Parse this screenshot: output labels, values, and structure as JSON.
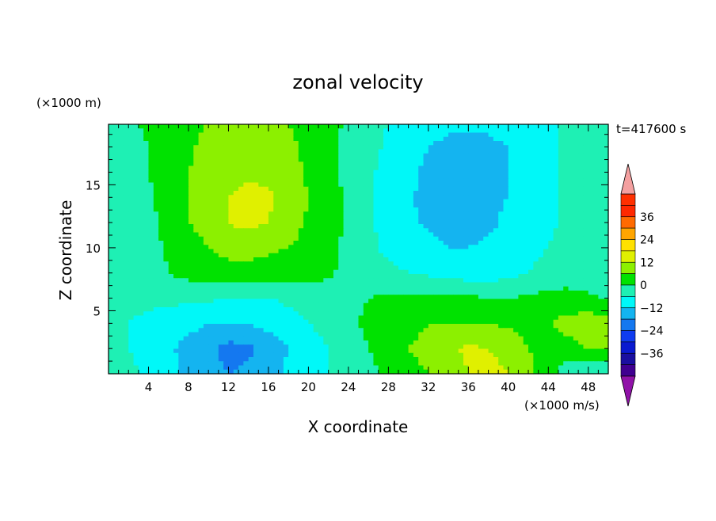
{
  "chart_data": {
    "type": "heatmap",
    "title": "zonal velocity",
    "xlabel": "X coordinate",
    "ylabel": "Z coordinate",
    "x_unit": "(×1000 m/s)",
    "y_unit": "(×1000 m)",
    "time_label": "t=417600 s",
    "xlim": [
      0,
      50
    ],
    "ylim": [
      0,
      19.8
    ],
    "x_ticks": [
      4,
      8,
      12,
      16,
      20,
      24,
      28,
      32,
      36,
      40,
      44,
      48
    ],
    "y_ticks": [
      5,
      10,
      15
    ],
    "grid": false,
    "colorbar": {
      "levels": [
        -42,
        -36,
        -30,
        -24,
        -18,
        -12,
        -6,
        0,
        6,
        12,
        18,
        24,
        30,
        36,
        42
      ],
      "colors": [
        "#400090",
        "#1a0fa0",
        "#0a1ad0",
        "#0f3cf0",
        "#1478f0",
        "#14b4f0",
        "#00f8f8",
        "#1ef0b4",
        "#00e200",
        "#8cf000",
        "#e0f000",
        "#ffe100",
        "#ffa500",
        "#ff6a00",
        "#ff2800",
        "#ff3000"
      ],
      "under_color": "#9012a8",
      "over_color": "#f4a0a0",
      "tick_labels": [
        "36",
        "24",
        "12",
        "0",
        "−12",
        "−24",
        "−36"
      ],
      "tick_values": [
        36,
        24,
        12,
        0,
        -12,
        -24,
        -36
      ]
    },
    "field": {
      "x": [
        0,
        2,
        4,
        6,
        8,
        10,
        12,
        14,
        16,
        18,
        20,
        22,
        24,
        26,
        28,
        30,
        32,
        34,
        36,
        38,
        40,
        42,
        44,
        46,
        48,
        50
      ],
      "z": [
        0,
        2,
        4,
        6,
        8,
        10,
        12,
        14,
        16,
        18,
        20
      ],
      "values": [
        [
          -2,
          -4,
          -8,
          -10,
          -14,
          -16,
          -18,
          -17,
          -15,
          -10,
          -8,
          -6,
          -4,
          -2,
          2,
          4,
          6,
          9,
          12,
          14,
          12,
          8,
          2,
          -4,
          -6,
          -4
        ],
        [
          -4,
          -6,
          -9,
          -11,
          -14,
          -17,
          -20,
          -19,
          -16,
          -12,
          -9,
          -6,
          -4,
          0,
          3,
          6,
          8,
          11,
          13,
          12,
          10,
          6,
          3,
          4,
          6,
          6
        ],
        [
          -4,
          -6,
          -8,
          -10,
          -10,
          -12,
          -12,
          -12,
          -10,
          -8,
          -6,
          -4,
          -2,
          2,
          3,
          4,
          6,
          6,
          6,
          6,
          5,
          4,
          6,
          8,
          10,
          8
        ],
        [
          -4,
          -4,
          -4,
          -4,
          -5,
          -5,
          -6,
          -6,
          -6,
          -5,
          -4,
          -3,
          -3,
          0,
          1,
          1,
          1,
          1,
          1,
          0,
          0,
          1,
          2,
          2,
          1,
          -1
        ],
        [
          -4,
          -3,
          -3,
          0,
          2,
          3,
          4,
          4,
          4,
          3,
          2,
          1,
          -2,
          -4,
          -5,
          -6,
          -7,
          -8,
          -9,
          -9,
          -8,
          -6,
          -4,
          -3,
          -4,
          -5
        ],
        [
          -4,
          -3,
          -2,
          1,
          4,
          6,
          8,
          8,
          7,
          6,
          4,
          2,
          -2,
          -5,
          -7,
          -9,
          -10,
          -12,
          -12,
          -11,
          -10,
          -8,
          -6,
          -4,
          -4,
          -5
        ],
        [
          -4,
          -3,
          -2,
          2,
          6,
          8,
          12,
          14,
          12,
          9,
          5,
          3,
          -1,
          -5,
          -8,
          -11,
          -13,
          -14,
          -14,
          -13,
          -11,
          -9,
          -7,
          -5,
          -5,
          -5
        ],
        [
          -4,
          -3,
          -1,
          3,
          6,
          9,
          12,
          14,
          13,
          10,
          6,
          3,
          -1,
          -5,
          -8,
          -11,
          -14,
          -15,
          -14,
          -13,
          -12,
          -10,
          -7,
          -5,
          -5,
          -5
        ],
        [
          -4,
          -2,
          0,
          3,
          6,
          8,
          10,
          11,
          10,
          8,
          5,
          2,
          -2,
          -5,
          -8,
          -11,
          -13,
          -14,
          -14,
          -13,
          -12,
          -10,
          -7,
          -5,
          -4,
          -5
        ],
        [
          -4,
          -2,
          0,
          2,
          5,
          8,
          9,
          10,
          8,
          7,
          5,
          2,
          -2,
          -4,
          -7,
          -9,
          -12,
          -13,
          -13,
          -13,
          -12,
          -10,
          -7,
          -5,
          -4,
          -5
        ],
        [
          -3,
          -1,
          1,
          2,
          4,
          6,
          7,
          8,
          7,
          6,
          4,
          2,
          -1,
          -4,
          -6,
          -8,
          -10,
          -11,
          -11,
          -11,
          -10,
          -9,
          -7,
          -5,
          -4,
          -5
        ]
      ]
    }
  }
}
